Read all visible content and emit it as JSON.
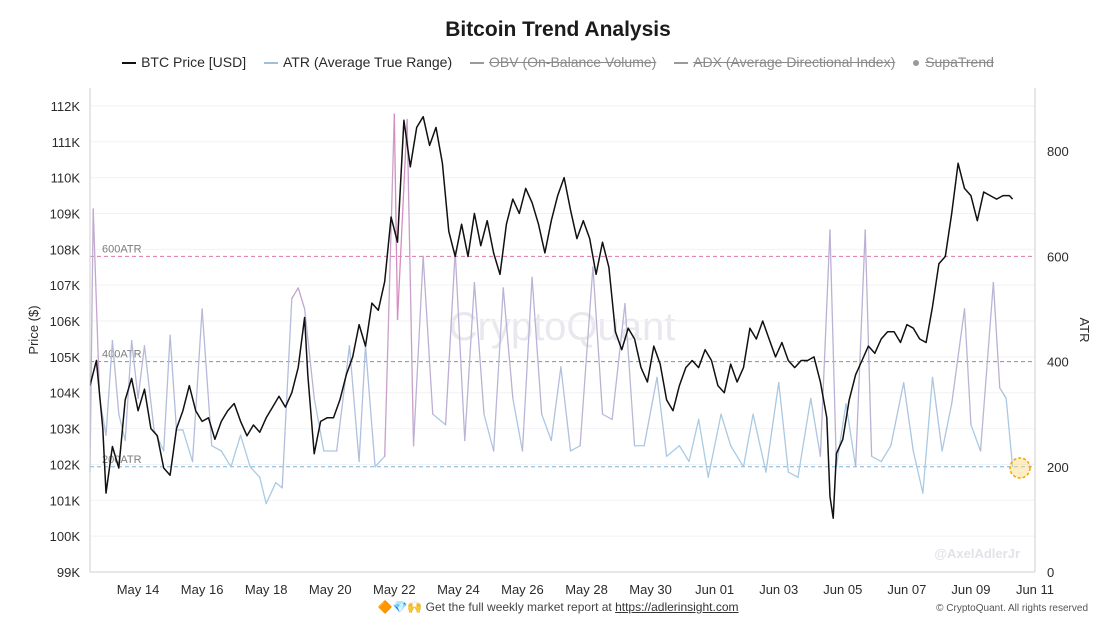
{
  "header": {
    "title": "Bitcoin Trend Analysis",
    "legend": [
      {
        "label": "BTC Price [USD]",
        "color": "#111111",
        "style": "line",
        "enabled": true
      },
      {
        "label": "ATR (Average True Range)",
        "color": "#9fbfd9",
        "style": "line",
        "enabled": true
      },
      {
        "label": "OBV (On-Balance Volume)",
        "color": "#9a9a9a",
        "style": "line",
        "enabled": false
      },
      {
        "label": "ADX (Average Directional Index)",
        "color": "#9a9a9a",
        "style": "line",
        "enabled": false
      },
      {
        "label": "SupaTrend",
        "color": "#9a9a9a",
        "style": "dot",
        "enabled": false
      }
    ]
  },
  "footer": {
    "emojis": "🔶💎🙌",
    "text": "Get the full weekly market report at",
    "link": "https://adlerinsight.com",
    "copyright": "© CryptoQuant. All rights reserved"
  },
  "watermark": "CryptoQuant",
  "handle": "@AxelAdlerJr",
  "chart_data": {
    "type": "line",
    "y_left": {
      "title": "Price ($)",
      "range": [
        99000,
        112500
      ],
      "ticks": [
        99000,
        100000,
        101000,
        102000,
        103000,
        104000,
        105000,
        106000,
        107000,
        108000,
        109000,
        110000,
        111000,
        112000
      ],
      "tick_labels": [
        "99K",
        "100K",
        "101K",
        "102K",
        "103K",
        "104K",
        "105K",
        "106K",
        "107K",
        "108K",
        "109K",
        "110K",
        "111K",
        "112K"
      ]
    },
    "y_right": {
      "title": "ATR",
      "range": [
        0,
        920
      ],
      "ticks": [
        0,
        200,
        400,
        600,
        800
      ],
      "tick_labels": [
        "0",
        "200",
        "400",
        "600",
        "800"
      ]
    },
    "x": {
      "range_days": [
        12.5,
        42.0
      ],
      "tick_days": [
        14,
        16,
        18,
        20,
        22,
        24,
        26,
        28,
        30,
        32,
        34,
        36,
        38,
        40,
        42
      ],
      "tick_labels": [
        "May 14",
        "May 16",
        "May 18",
        "May 20",
        "May 22",
        "May 24",
        "May 26",
        "May 28",
        "May 30",
        "Jun 01",
        "Jun 03",
        "Jun 05",
        "Jun 07",
        "Jun 09",
        "Jun 11"
      ]
    },
    "reference_lines": [
      {
        "label": "600ATR",
        "value": 600,
        "color": "#d97aa6"
      },
      {
        "label": "400ATR",
        "value": 400,
        "color": "#8f8f9a"
      },
      {
        "label": "200ATR",
        "value": 200,
        "color": "#7fb3d5"
      }
    ],
    "series": [
      {
        "name": "BTC Price [USD]",
        "axis": "left",
        "color": "#111111",
        "points": [
          [
            12.5,
            104200
          ],
          [
            12.7,
            104900
          ],
          [
            12.9,
            103000
          ],
          [
            13.0,
            101200
          ],
          [
            13.2,
            102500
          ],
          [
            13.4,
            101900
          ],
          [
            13.6,
            103800
          ],
          [
            13.8,
            104400
          ],
          [
            14.0,
            103500
          ],
          [
            14.2,
            104100
          ],
          [
            14.4,
            103000
          ],
          [
            14.6,
            102800
          ],
          [
            14.8,
            101900
          ],
          [
            15.0,
            101700
          ],
          [
            15.2,
            103000
          ],
          [
            15.4,
            103500
          ],
          [
            15.6,
            104200
          ],
          [
            15.8,
            103500
          ],
          [
            16.0,
            103200
          ],
          [
            16.2,
            103300
          ],
          [
            16.4,
            102700
          ],
          [
            16.6,
            103200
          ],
          [
            16.8,
            103500
          ],
          [
            17.0,
            103700
          ],
          [
            17.2,
            103200
          ],
          [
            17.4,
            102800
          ],
          [
            17.6,
            103100
          ],
          [
            17.8,
            102900
          ],
          [
            18.0,
            103300
          ],
          [
            18.2,
            103600
          ],
          [
            18.4,
            103900
          ],
          [
            18.6,
            103600
          ],
          [
            18.8,
            104000
          ],
          [
            19.0,
            104700
          ],
          [
            19.2,
            106100
          ],
          [
            19.3,
            104500
          ],
          [
            19.5,
            102300
          ],
          [
            19.7,
            103200
          ],
          [
            19.9,
            103300
          ],
          [
            20.1,
            103300
          ],
          [
            20.3,
            103800
          ],
          [
            20.5,
            104500
          ],
          [
            20.7,
            105000
          ],
          [
            20.9,
            105900
          ],
          [
            21.1,
            105300
          ],
          [
            21.3,
            106500
          ],
          [
            21.5,
            106300
          ],
          [
            21.7,
            107100
          ],
          [
            21.9,
            108900
          ],
          [
            22.1,
            108200
          ],
          [
            22.3,
            111600
          ],
          [
            22.5,
            110300
          ],
          [
            22.7,
            111400
          ],
          [
            22.9,
            111700
          ],
          [
            23.1,
            110900
          ],
          [
            23.3,
            111400
          ],
          [
            23.5,
            110400
          ],
          [
            23.7,
            108500
          ],
          [
            23.9,
            107800
          ],
          [
            24.1,
            108700
          ],
          [
            24.3,
            107800
          ],
          [
            24.5,
            109000
          ],
          [
            24.7,
            108100
          ],
          [
            24.9,
            108800
          ],
          [
            25.1,
            107900
          ],
          [
            25.3,
            107300
          ],
          [
            25.5,
            108700
          ],
          [
            25.7,
            109400
          ],
          [
            25.9,
            109000
          ],
          [
            26.1,
            109700
          ],
          [
            26.3,
            109300
          ],
          [
            26.5,
            108700
          ],
          [
            26.7,
            107900
          ],
          [
            26.9,
            108800
          ],
          [
            27.1,
            109500
          ],
          [
            27.3,
            110000
          ],
          [
            27.5,
            109100
          ],
          [
            27.7,
            108300
          ],
          [
            27.9,
            108800
          ],
          [
            28.1,
            108300
          ],
          [
            28.3,
            107300
          ],
          [
            28.5,
            108200
          ],
          [
            28.7,
            107500
          ],
          [
            28.9,
            105700
          ],
          [
            29.1,
            105200
          ],
          [
            29.3,
            105800
          ],
          [
            29.5,
            105500
          ],
          [
            29.7,
            104700
          ],
          [
            29.9,
            104300
          ],
          [
            30.1,
            105300
          ],
          [
            30.3,
            104800
          ],
          [
            30.5,
            103800
          ],
          [
            30.7,
            103500
          ],
          [
            30.9,
            104200
          ],
          [
            31.1,
            104700
          ],
          [
            31.3,
            104900
          ],
          [
            31.5,
            104700
          ],
          [
            31.7,
            105200
          ],
          [
            31.9,
            104900
          ],
          [
            32.1,
            104200
          ],
          [
            32.3,
            104000
          ],
          [
            32.5,
            104800
          ],
          [
            32.7,
            104300
          ],
          [
            32.9,
            104700
          ],
          [
            33.1,
            105800
          ],
          [
            33.3,
            105500
          ],
          [
            33.5,
            106000
          ],
          [
            33.7,
            105500
          ],
          [
            33.9,
            105000
          ],
          [
            34.1,
            105400
          ],
          [
            34.3,
            104900
          ],
          [
            34.5,
            104700
          ],
          [
            34.7,
            104900
          ],
          [
            34.9,
            104900
          ],
          [
            35.1,
            105000
          ],
          [
            35.3,
            104300
          ],
          [
            35.5,
            103300
          ],
          [
            35.6,
            101100
          ],
          [
            35.7,
            100500
          ],
          [
            35.8,
            102300
          ],
          [
            36.0,
            102700
          ],
          [
            36.2,
            103800
          ],
          [
            36.4,
            104500
          ],
          [
            36.6,
            104900
          ],
          [
            36.8,
            105300
          ],
          [
            37.0,
            105100
          ],
          [
            37.2,
            105500
          ],
          [
            37.4,
            105700
          ],
          [
            37.6,
            105700
          ],
          [
            37.8,
            105400
          ],
          [
            38.0,
            105900
          ],
          [
            38.2,
            105800
          ],
          [
            38.4,
            105500
          ],
          [
            38.6,
            105400
          ],
          [
            38.8,
            106400
          ],
          [
            39.0,
            107600
          ],
          [
            39.2,
            107800
          ],
          [
            39.4,
            109000
          ],
          [
            39.6,
            110400
          ],
          [
            39.8,
            109700
          ],
          [
            40.0,
            109500
          ],
          [
            40.2,
            108800
          ],
          [
            40.4,
            109600
          ],
          [
            40.6,
            109500
          ],
          [
            40.8,
            109400
          ],
          [
            41.0,
            109500
          ],
          [
            41.2,
            109500
          ],
          [
            41.3,
            109400
          ]
        ]
      },
      {
        "name": "ATR (Average True Range)",
        "axis": "right",
        "colors": {
          "low": "#a9cbe3",
          "high": "#d889bd"
        },
        "points": [
          [
            12.5,
            190
          ],
          [
            12.6,
            690
          ],
          [
            12.8,
            330
          ],
          [
            13.0,
            260
          ],
          [
            13.2,
            440
          ],
          [
            13.4,
            300
          ],
          [
            13.6,
            250
          ],
          [
            13.8,
            440
          ],
          [
            14.0,
            330
          ],
          [
            14.2,
            430
          ],
          [
            14.5,
            270
          ],
          [
            14.8,
            230
          ],
          [
            15.0,
            450
          ],
          [
            15.2,
            270
          ],
          [
            15.4,
            270
          ],
          [
            15.7,
            210
          ],
          [
            16.0,
            500
          ],
          [
            16.3,
            240
          ],
          [
            16.6,
            230
          ],
          [
            16.9,
            200
          ],
          [
            17.2,
            260
          ],
          [
            17.5,
            200
          ],
          [
            17.8,
            180
          ],
          [
            18.0,
            130
          ],
          [
            18.3,
            170
          ],
          [
            18.5,
            160
          ],
          [
            18.8,
            520
          ],
          [
            19.0,
            540
          ],
          [
            19.2,
            500
          ],
          [
            19.5,
            330
          ],
          [
            19.8,
            230
          ],
          [
            20.2,
            230
          ],
          [
            20.6,
            430
          ],
          [
            20.9,
            210
          ],
          [
            21.1,
            430
          ],
          [
            21.4,
            200
          ],
          [
            21.7,
            220
          ],
          [
            22.0,
            870
          ],
          [
            22.1,
            480
          ],
          [
            22.4,
            860
          ],
          [
            22.6,
            240
          ],
          [
            22.9,
            600
          ],
          [
            23.2,
            300
          ],
          [
            23.6,
            280
          ],
          [
            23.9,
            610
          ],
          [
            24.2,
            250
          ],
          [
            24.5,
            550
          ],
          [
            24.8,
            300
          ],
          [
            25.1,
            230
          ],
          [
            25.4,
            540
          ],
          [
            25.7,
            330
          ],
          [
            26.0,
            230
          ],
          [
            26.3,
            560
          ],
          [
            26.6,
            300
          ],
          [
            26.9,
            250
          ],
          [
            27.2,
            390
          ],
          [
            27.5,
            230
          ],
          [
            27.8,
            240
          ],
          [
            28.2,
            580
          ],
          [
            28.5,
            300
          ],
          [
            28.8,
            290
          ],
          [
            29.2,
            510
          ],
          [
            29.5,
            240
          ],
          [
            29.8,
            240
          ],
          [
            30.2,
            370
          ],
          [
            30.5,
            220
          ],
          [
            30.9,
            240
          ],
          [
            31.2,
            210
          ],
          [
            31.5,
            290
          ],
          [
            31.8,
            180
          ],
          [
            32.2,
            300
          ],
          [
            32.5,
            240
          ],
          [
            32.9,
            200
          ],
          [
            33.2,
            300
          ],
          [
            33.6,
            190
          ],
          [
            34.0,
            360
          ],
          [
            34.3,
            190
          ],
          [
            34.6,
            180
          ],
          [
            35.0,
            330
          ],
          [
            35.3,
            220
          ],
          [
            35.6,
            650
          ],
          [
            35.8,
            200
          ],
          [
            36.1,
            320
          ],
          [
            36.4,
            200
          ],
          [
            36.7,
            650
          ],
          [
            36.9,
            220
          ],
          [
            37.2,
            210
          ],
          [
            37.5,
            240
          ],
          [
            37.9,
            360
          ],
          [
            38.2,
            230
          ],
          [
            38.5,
            150
          ],
          [
            38.8,
            370
          ],
          [
            39.1,
            230
          ],
          [
            39.4,
            320
          ],
          [
            39.8,
            500
          ],
          [
            40.0,
            280
          ],
          [
            40.3,
            230
          ],
          [
            40.7,
            550
          ],
          [
            40.9,
            350
          ],
          [
            41.1,
            330
          ],
          [
            41.3,
            200
          ]
        ]
      }
    ]
  }
}
